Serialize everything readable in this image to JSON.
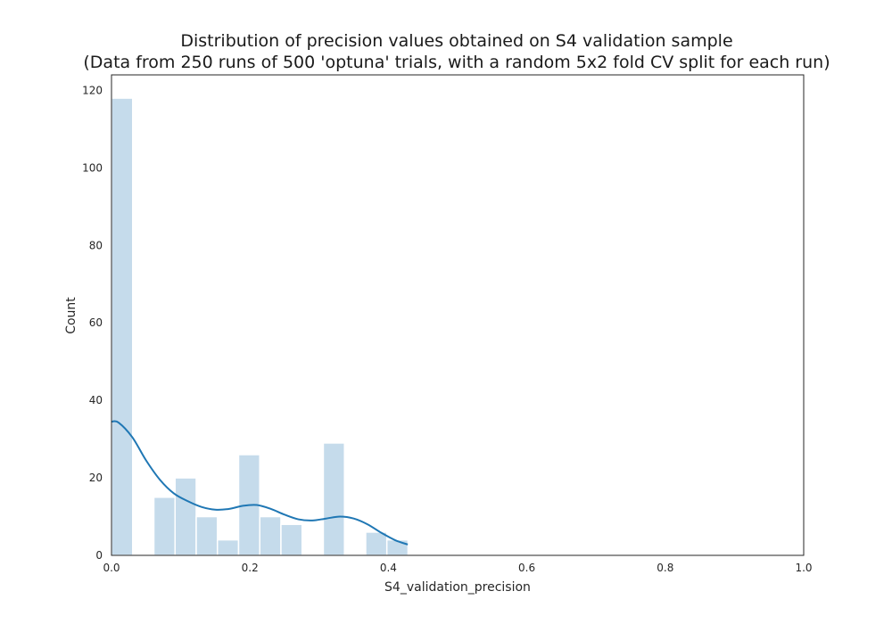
{
  "chart_data": {
    "type": "bar",
    "title": "Distribution of precision values obtained on S4 validation sample",
    "subtitle": "(Data from 250 runs of 500 'optuna' trials, with a random 5x2 fold CV split for each run)",
    "xlabel": "S4_validation_precision",
    "ylabel": "Count",
    "xlim": [
      0.0,
      1.0
    ],
    "ylim": [
      0,
      124
    ],
    "x_ticks": [
      "0.0",
      "0.2",
      "0.4",
      "0.6",
      "0.8",
      "1.0"
    ],
    "y_ticks": [
      "0",
      "20",
      "40",
      "60",
      "80",
      "100",
      "120"
    ],
    "grid": false,
    "bin_width": 0.0306,
    "bins": [
      {
        "x_start": 0.0,
        "x_end": 0.0306,
        "count": 118
      },
      {
        "x_start": 0.0306,
        "x_end": 0.0612,
        "count": 0
      },
      {
        "x_start": 0.0612,
        "x_end": 0.0918,
        "count": 15
      },
      {
        "x_start": 0.0918,
        "x_end": 0.1224,
        "count": 20
      },
      {
        "x_start": 0.1224,
        "x_end": 0.153,
        "count": 10
      },
      {
        "x_start": 0.153,
        "x_end": 0.1836,
        "count": 4
      },
      {
        "x_start": 0.1836,
        "x_end": 0.2142,
        "count": 26
      },
      {
        "x_start": 0.2142,
        "x_end": 0.2448,
        "count": 10
      },
      {
        "x_start": 0.2448,
        "x_end": 0.2754,
        "count": 8
      },
      {
        "x_start": 0.2754,
        "x_end": 0.306,
        "count": 0
      },
      {
        "x_start": 0.306,
        "x_end": 0.3366,
        "count": 29
      },
      {
        "x_start": 0.3366,
        "x_end": 0.3672,
        "count": 0
      },
      {
        "x_start": 0.3672,
        "x_end": 0.3978,
        "count": 6
      },
      {
        "x_start": 0.3978,
        "x_end": 0.4284,
        "count": 4
      }
    ],
    "kde": {
      "x": [
        0.0,
        0.01,
        0.03,
        0.05,
        0.07,
        0.09,
        0.11,
        0.13,
        0.15,
        0.17,
        0.19,
        0.21,
        0.23,
        0.25,
        0.27,
        0.29,
        0.31,
        0.33,
        0.35,
        0.37,
        0.39,
        0.41,
        0.428
      ],
      "y": [
        34.5,
        34.3,
        30.5,
        24.5,
        19.5,
        16.0,
        14.0,
        12.5,
        11.8,
        12.0,
        12.8,
        13.0,
        12.0,
        10.5,
        9.3,
        9.0,
        9.5,
        10.0,
        9.5,
        8.0,
        5.8,
        3.9,
        2.8
      ]
    },
    "colors": {
      "bar_fill": "#c5dbeb",
      "kde_line": "#1f77b4",
      "axes": "#262626"
    }
  }
}
